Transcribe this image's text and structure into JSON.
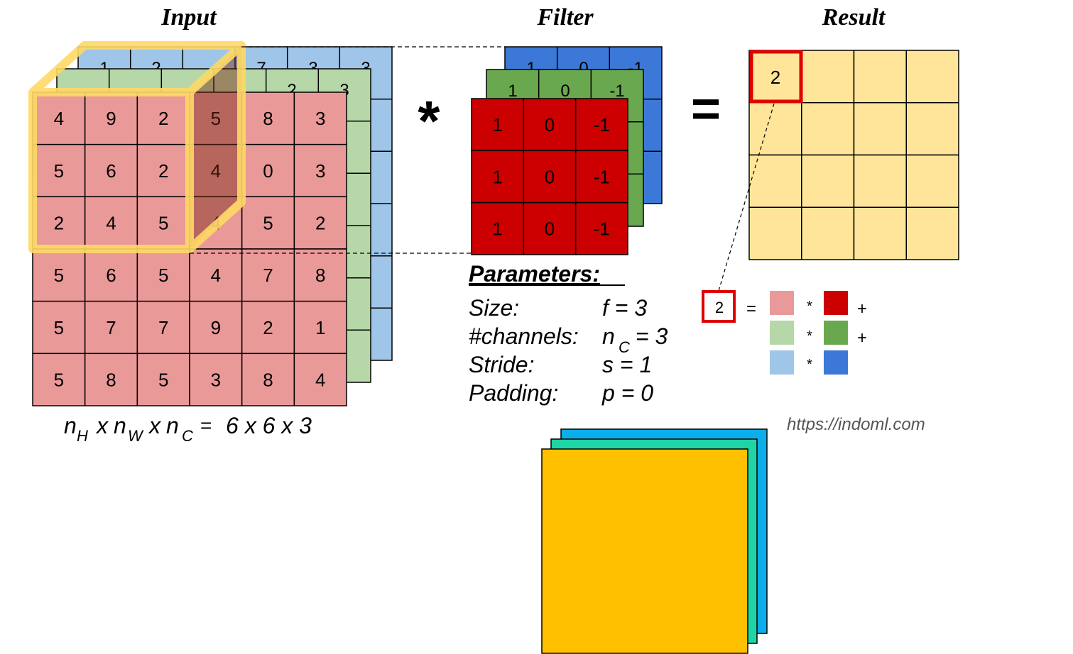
{
  "titles": {
    "input": "Input",
    "filter": "Filter",
    "result": "Result"
  },
  "operators": {
    "convolve": "*",
    "equals": "="
  },
  "input": {
    "blue_partial": [
      [
        "1",
        "2",
        "",
        "7",
        "3",
        "3"
      ]
    ],
    "green_partial": [
      [
        "",
        "",
        "",
        "",
        "2",
        "3"
      ]
    ],
    "red": [
      [
        "4",
        "9",
        "2",
        "5",
        "8",
        "3"
      ],
      [
        "5",
        "6",
        "2",
        "4",
        "0",
        "3"
      ],
      [
        "2",
        "4",
        "5",
        "4",
        "5",
        "2"
      ],
      [
        "5",
        "6",
        "5",
        "4",
        "7",
        "8"
      ],
      [
        "5",
        "7",
        "7",
        "9",
        "2",
        "1"
      ],
      [
        "5",
        "8",
        "5",
        "3",
        "8",
        "4"
      ]
    ],
    "dimension_label": {
      "lhs_n1": "n",
      "sub1": "H",
      "x1": "x",
      "lhs_n2": "n",
      "sub2": "W",
      "x2": "x",
      "lhs_n3": "n",
      "sub3": "C",
      "eq": "=",
      "rhs": "6 x 6 x 3"
    }
  },
  "filter": {
    "blue_partial": [
      "1",
      "0",
      "-1"
    ],
    "green_partial": [
      "1",
      "0",
      "-1"
    ],
    "red": [
      [
        "1",
        "0",
        "-1"
      ],
      [
        "1",
        "0",
        "-1"
      ],
      [
        "1",
        "0",
        "-1"
      ]
    ]
  },
  "result": {
    "first_value": "2",
    "rows": 4,
    "cols": 4
  },
  "parameters": {
    "heading": "Parameters:",
    "rows": [
      {
        "label": "Size:",
        "value": "f = 3"
      },
      {
        "label": "#channels:",
        "value_main": "n",
        "value_sub": "C",
        "value_rest": " = 3"
      },
      {
        "label": "Stride:",
        "value": "s = 1"
      },
      {
        "label": "Padding:",
        "value": "p = 0"
      }
    ]
  },
  "equation": {
    "value": "2",
    "equals": "=",
    "multiply": "*",
    "plus": "+"
  },
  "source": "https://indoml.com",
  "colors": {
    "input_red": "#ea9999",
    "input_green": "#b6d7a8",
    "input_blue": "#9fc5e8",
    "filter_red": "#cc0000",
    "filter_green": "#6aa84f",
    "filter_blue": "#3c78d8",
    "result_fill": "#ffe599",
    "highlight_cube": "#ffd966",
    "result_border": "#e00000",
    "stack_orange": "#ffc000",
    "stack_teal": "#1fd5a5",
    "stack_blue": "#0aaeea"
  }
}
